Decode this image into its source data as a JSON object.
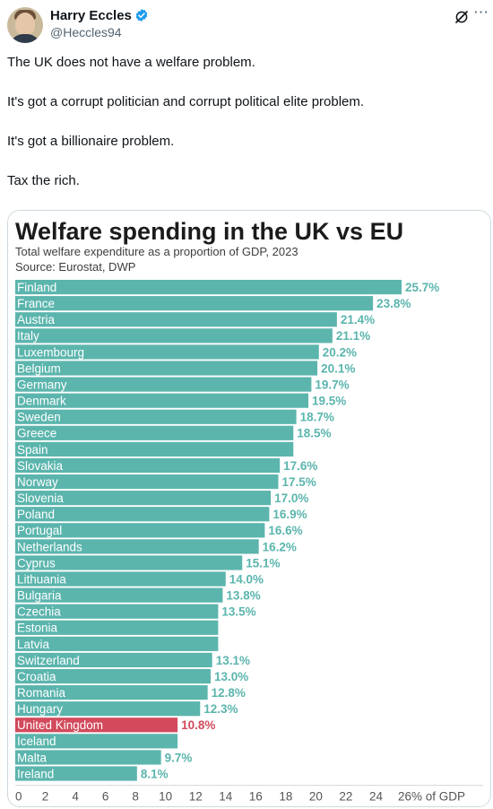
{
  "author": {
    "name": "Harry Eccles",
    "handle": "@Heccles94"
  },
  "colors": {
    "bar": "#5bb5ad",
    "highlight": "#d24a5c",
    "verified": "#1d9bf0"
  },
  "icons": {
    "verified": "verified-badge-icon",
    "grok": "grok-icon",
    "more": "more-icon"
  },
  "tweet": {
    "lines": [
      "The UK does not have a welfare problem.",
      "It's got a corrupt politician and corrupt political elite problem.",
      "It's got a billionaire problem.",
      "Tax the rich."
    ]
  },
  "chart_data": {
    "type": "bar",
    "orientation": "horizontal",
    "title": "Welfare spending in the UK vs EU",
    "subtitle": "Total welfare expenditure as a proportion of GDP, 2023",
    "source": "Source: Eurostat, DWP",
    "xlim": [
      0,
      26
    ],
    "x_ticks": [
      "0",
      "2",
      "4",
      "6",
      "8",
      "10",
      "12",
      "14",
      "16",
      "18",
      "20",
      "22",
      "24",
      "26% of GDP"
    ],
    "highlight": "United Kingdom",
    "bars": [
      {
        "label": "Finland",
        "value": 25.7,
        "value_label": "25.7%"
      },
      {
        "label": "France",
        "value": 23.8,
        "value_label": "23.8%"
      },
      {
        "label": "Austria",
        "value": 21.4,
        "value_label": "21.4%"
      },
      {
        "label": "Italy",
        "value": 21.1,
        "value_label": "21.1%"
      },
      {
        "label": "Luxembourg",
        "value": 20.2,
        "value_label": "20.2%"
      },
      {
        "label": "Belgium",
        "value": 20.1,
        "value_label": "20.1%"
      },
      {
        "label": "Germany",
        "value": 19.7,
        "value_label": "19.7%"
      },
      {
        "label": "Denmark",
        "value": 19.5,
        "value_label": "19.5%"
      },
      {
        "label": "Sweden",
        "value": 18.7,
        "value_label": "18.7%"
      },
      {
        "label": "Greece",
        "value": 18.5,
        "value_label": "18.5%"
      },
      {
        "label": "Spain",
        "value": 18.5,
        "value_label": ""
      },
      {
        "label": "Slovakia",
        "value": 17.6,
        "value_label": "17.6%"
      },
      {
        "label": "Norway",
        "value": 17.5,
        "value_label": "17.5%"
      },
      {
        "label": "Slovenia",
        "value": 17.0,
        "value_label": "17.0%"
      },
      {
        "label": "Poland",
        "value": 16.9,
        "value_label": "16.9%"
      },
      {
        "label": "Portugal",
        "value": 16.6,
        "value_label": "16.6%"
      },
      {
        "label": "Netherlands",
        "value": 16.2,
        "value_label": "16.2%"
      },
      {
        "label": "Cyprus",
        "value": 15.1,
        "value_label": "15.1%"
      },
      {
        "label": "Lithuania",
        "value": 14.0,
        "value_label": "14.0%"
      },
      {
        "label": "Bulgaria",
        "value": 13.8,
        "value_label": "13.8%"
      },
      {
        "label": "Czechia",
        "value": 13.5,
        "value_label": "13.5%"
      },
      {
        "label": "Estonia",
        "value": 13.5,
        "value_label": ""
      },
      {
        "label": "Latvia",
        "value": 13.5,
        "value_label": ""
      },
      {
        "label": "Switzerland",
        "value": 13.1,
        "value_label": "13.1%"
      },
      {
        "label": "Croatia",
        "value": 13.0,
        "value_label": "13.0%"
      },
      {
        "label": "Romania",
        "value": 12.8,
        "value_label": "12.8%"
      },
      {
        "label": "Hungary",
        "value": 12.3,
        "value_label": "12.3%"
      },
      {
        "label": "United Kingdom",
        "value": 10.8,
        "value_label": "10.8%"
      },
      {
        "label": "Iceland",
        "value": 10.8,
        "value_label": ""
      },
      {
        "label": "Malta",
        "value": 9.7,
        "value_label": "9.7%"
      },
      {
        "label": "Ireland",
        "value": 8.1,
        "value_label": "8.1%"
      }
    ]
  }
}
